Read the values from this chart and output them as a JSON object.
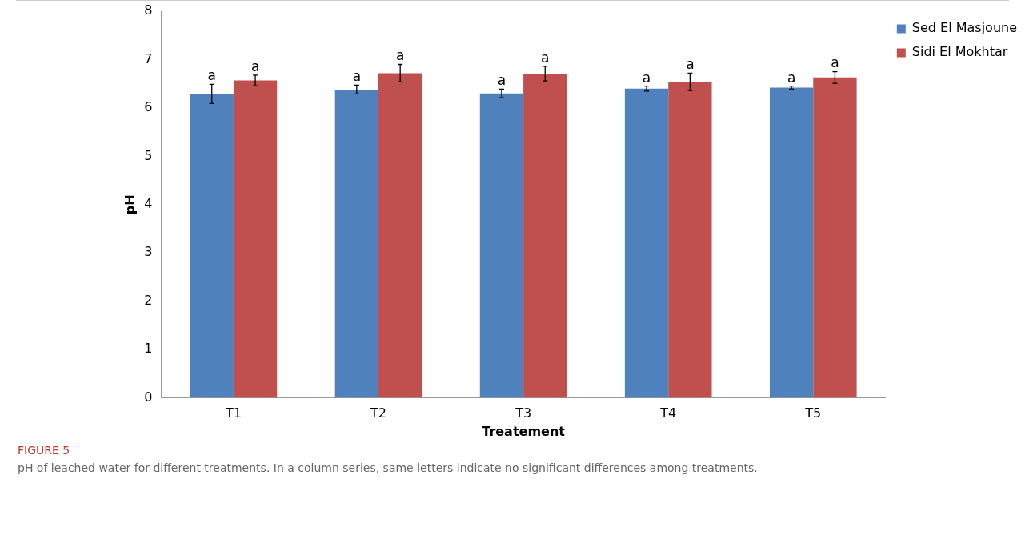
{
  "chart_data": {
    "type": "bar",
    "xlabel": "Treatement",
    "ylabel": "pH",
    "categories": [
      "T1",
      "T2",
      "T3",
      "T4",
      "T5"
    ],
    "series": [
      {
        "name": "Sed El Masjoune",
        "color": "#4f81bd",
        "values": [
          6.29,
          6.38,
          6.3,
          6.4,
          6.42
        ],
        "errors": [
          0.2,
          0.09,
          0.09,
          0.05,
          0.03
        ],
        "value_labels": [
          "a",
          "a",
          "a",
          "a",
          "a"
        ]
      },
      {
        "name": "Sidi El Mokhtar",
        "color": "#c0504d",
        "values": [
          6.57,
          6.72,
          6.71,
          6.54,
          6.63
        ],
        "errors": [
          0.11,
          0.18,
          0.15,
          0.18,
          0.12
        ],
        "value_labels": [
          "a",
          "a",
          "a",
          "a",
          "a"
        ]
      }
    ],
    "ylim": [
      0,
      8
    ],
    "yticks": [
      0,
      1,
      2,
      3,
      4,
      5,
      6,
      7,
      8
    ],
    "grid": false,
    "legend": "top right",
    "annotations": [
      "FIGURE 5",
      "pH of leached water for different treatments. In a column series, same letters indicate no significant differences among treatments."
    ]
  }
}
